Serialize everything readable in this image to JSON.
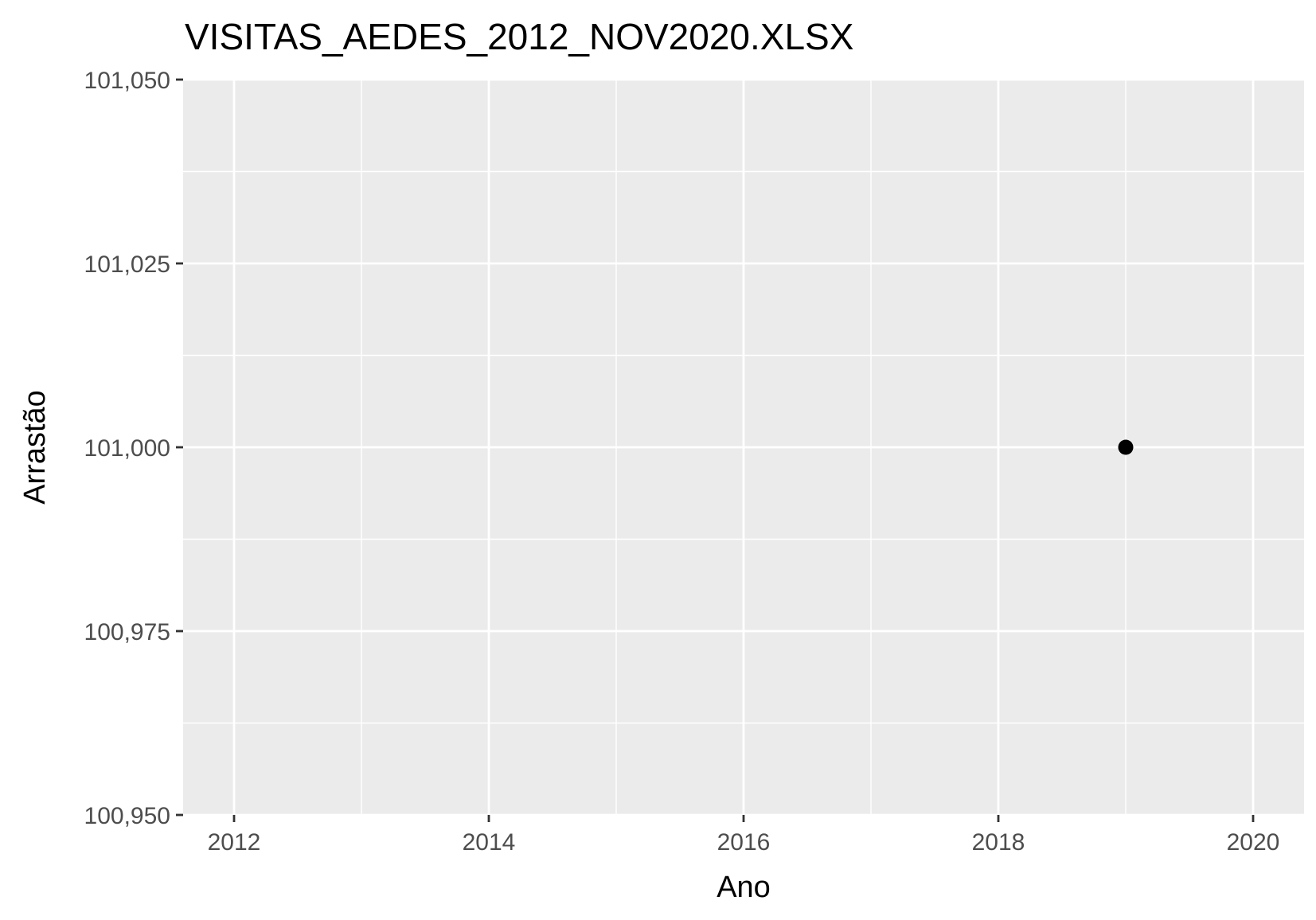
{
  "chart_data": {
    "type": "scatter",
    "title": "VISITAS_AEDES_2012_NOV2020.XLSX",
    "xlabel": "Ano",
    "ylabel": "Arrastão",
    "xlim": [
      2011.6,
      2020.4
    ],
    "ylim": [
      100950,
      101050
    ],
    "x_ticks": [
      2012,
      2014,
      2016,
      2018,
      2020
    ],
    "x_tick_labels": [
      "2012",
      "2014",
      "2016",
      "2018",
      "2020"
    ],
    "x_minor_ticks": [
      2013,
      2015,
      2017,
      2019
    ],
    "y_ticks": [
      100950,
      100975,
      101000,
      101025,
      101050
    ],
    "y_tick_labels": [
      "100,950",
      "100,975",
      "101,000",
      "101,025",
      "101,050"
    ],
    "y_minor_ticks": [
      100962.5,
      100987.5,
      101012.5,
      101037.5
    ],
    "grid": true,
    "points": [
      {
        "x": 2019,
        "y": 101000
      }
    ],
    "colors": {
      "panel_background": "#ebebeb",
      "grid": "#ffffff",
      "point": "#000000",
      "tick": "#333333"
    }
  }
}
